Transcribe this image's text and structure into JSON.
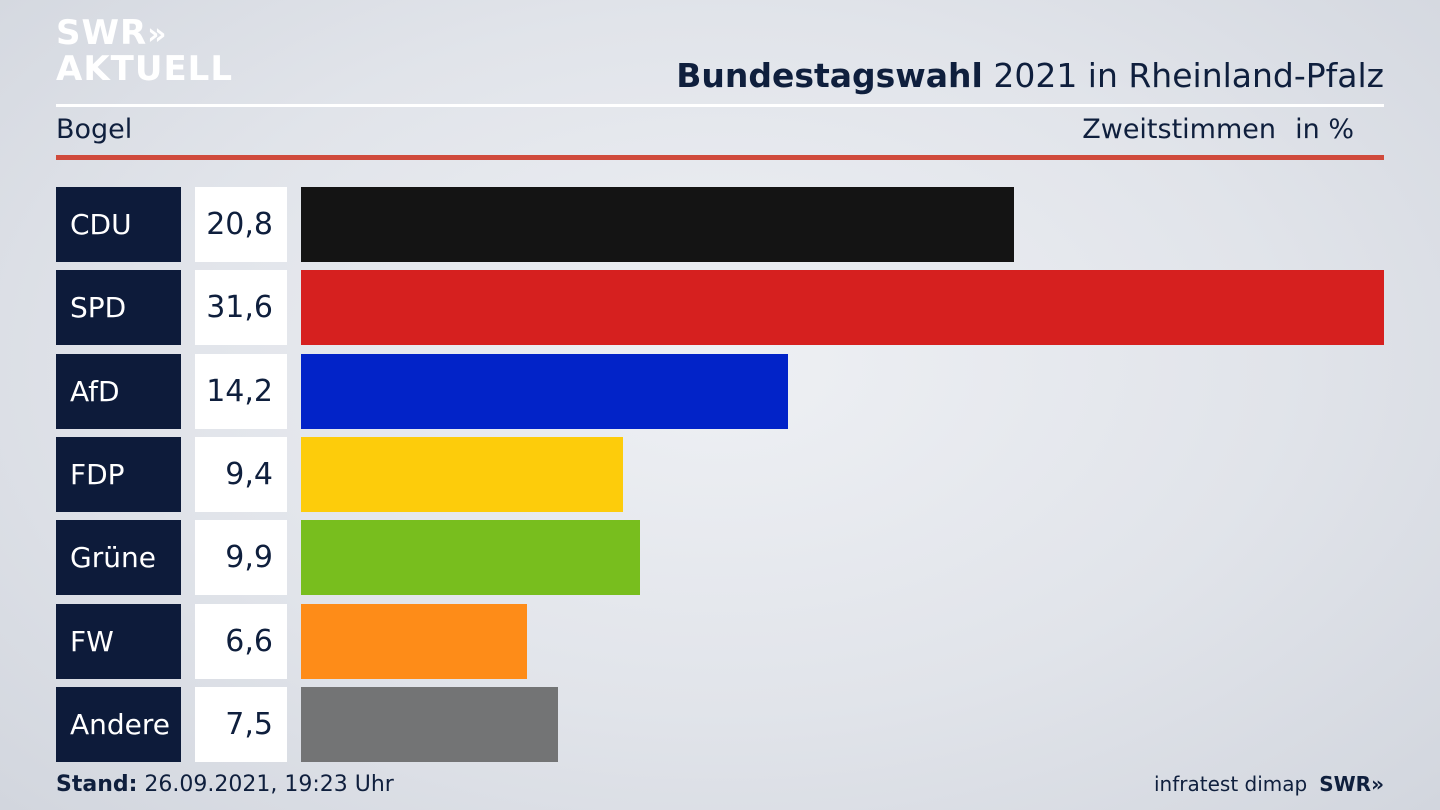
{
  "header": {
    "logo_line1": "SWR",
    "logo_chevrons": "»",
    "logo_line2": "AKTUELL",
    "title_bold": "Bundestagswahl",
    "title_rest": " 2021 in Rheinland-Pfalz",
    "subtitle": "Bogel",
    "vote_type": "Zweitstimmen",
    "unit": "in %"
  },
  "chart_data": {
    "type": "bar",
    "orientation": "horizontal",
    "categories": [
      "CDU",
      "SPD",
      "AfD",
      "FDP",
      "Grüne",
      "FW",
      "Andere"
    ],
    "values": [
      20.8,
      31.6,
      14.2,
      9.4,
      9.9,
      6.6,
      7.5
    ],
    "value_labels": [
      "20,8",
      "31,6",
      "14,2",
      "9,4",
      "9,9",
      "6,6",
      "7,5"
    ],
    "colors": [
      "#141414",
      "#d6201f",
      "#0223c8",
      "#fdcc0b",
      "#78be1e",
      "#fe8c18",
      "#737475"
    ],
    "xlim": [
      0,
      31.6
    ],
    "grid": false,
    "legend": "none"
  },
  "footer": {
    "stand_label": "Stand:",
    "stand_value": " 26.09.2021, 19:23 Uhr",
    "source": "infratest dimap",
    "logo": "SWR»"
  }
}
